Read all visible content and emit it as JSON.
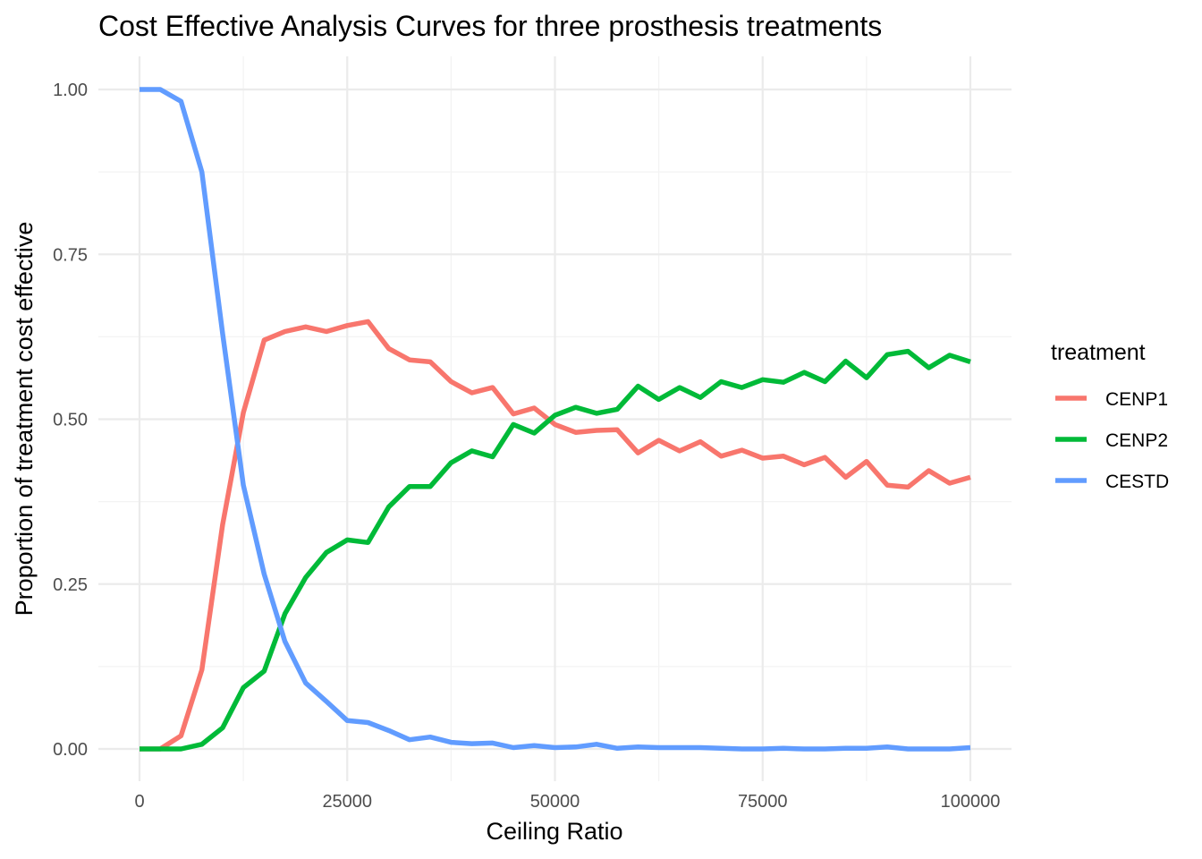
{
  "chart_data": {
    "type": "line",
    "title": "Cost Effective Analysis Curves for three prosthesis treatments",
    "xlabel": "Ceiling Ratio",
    "ylabel": "Proportion of treatment cost effective",
    "xlim": [
      0,
      100000
    ],
    "ylim": [
      0,
      1
    ],
    "x_ticks": [
      0,
      25000,
      50000,
      75000,
      100000
    ],
    "x_tick_labels": [
      "0",
      "25000",
      "50000",
      "75000",
      "100000"
    ],
    "y_ticks": [
      0,
      0.25,
      0.5,
      0.75,
      1.0
    ],
    "y_tick_labels": [
      "0.00",
      "0.25",
      "0.50",
      "0.75",
      "1.00"
    ],
    "grid": true,
    "legend": {
      "title": "treatment",
      "placement": "right"
    },
    "x": [
      0,
      2500,
      5000,
      7500,
      10000,
      12500,
      15000,
      17500,
      20000,
      22500,
      25000,
      27500,
      30000,
      32500,
      35000,
      37500,
      40000,
      42500,
      45000,
      47500,
      50000,
      52500,
      55000,
      57500,
      60000,
      62500,
      65000,
      67500,
      70000,
      72500,
      75000,
      77500,
      80000,
      82500,
      85000,
      87500,
      90000,
      92500,
      95000,
      97500,
      100000
    ],
    "series": [
      {
        "name": "CENP1",
        "color": "#f8766d",
        "values": [
          0,
          0,
          0.02,
          0.12,
          0.34,
          0.51,
          0.62,
          0.633,
          0.64,
          0.633,
          0.642,
          0.648,
          0.607,
          0.59,
          0.587,
          0.557,
          0.54,
          0.548,
          0.508,
          0.517,
          0.492,
          0.48,
          0.483,
          0.484,
          0.449,
          0.468,
          0.452,
          0.466,
          0.444,
          0.453,
          0.441,
          0.444,
          0.431,
          0.442,
          0.412,
          0.436,
          0.4,
          0.397,
          0.422,
          0.403,
          0.412
        ]
      },
      {
        "name": "CENP2",
        "color": "#00ba38",
        "values": [
          0,
          0,
          0,
          0.007,
          0.032,
          0.093,
          0.118,
          0.205,
          0.26,
          0.298,
          0.317,
          0.313,
          0.367,
          0.398,
          0.398,
          0.434,
          0.452,
          0.443,
          0.492,
          0.479,
          0.506,
          0.518,
          0.509,
          0.515,
          0.55,
          0.53,
          0.548,
          0.533,
          0.557,
          0.548,
          0.56,
          0.556,
          0.571,
          0.557,
          0.588,
          0.563,
          0.598,
          0.603,
          0.578,
          0.597,
          0.587
        ]
      },
      {
        "name": "CESTD",
        "color": "#619cff",
        "values": [
          1.0,
          1.0,
          0.982,
          0.875,
          0.63,
          0.4,
          0.265,
          0.163,
          0.1,
          0.072,
          0.043,
          0.04,
          0.028,
          0.014,
          0.018,
          0.01,
          0.008,
          0.009,
          0.002,
          0.005,
          0.002,
          0.003,
          0.007,
          0.001,
          0.003,
          0.002,
          0.002,
          0.002,
          0.001,
          0,
          0,
          0.001,
          0,
          0,
          0.001,
          0.001,
          0.003,
          0,
          0,
          0,
          0.002
        ]
      }
    ]
  }
}
